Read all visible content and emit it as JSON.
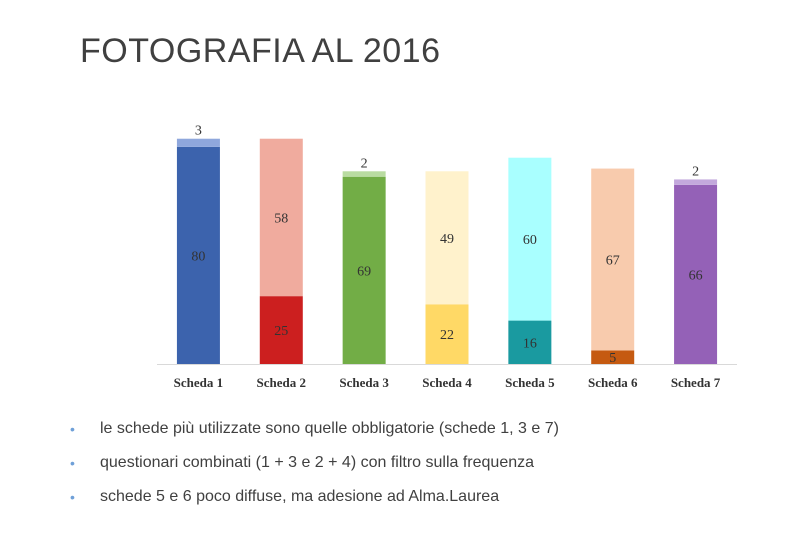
{
  "title": "FOTOGRAFIA AL 2016",
  "bullets": [
    "le schede più utilizzate sono quelle obbligatorie (schede 1, 3 e 7)",
    "questionari combinati (1 + 3 e 2 + 4) con filtro sulla frequenza",
    "schede 5 e 6 poco diffuse, ma adesione ad Alma.Laurea"
  ],
  "chart_data": {
    "type": "bar",
    "stacked": true,
    "categories": [
      "Scheda 1",
      "Scheda 2",
      "Scheda 3",
      "Scheda 4",
      "Scheda 5",
      "Scheda 6",
      "Scheda 7"
    ],
    "segments": [
      [
        {
          "value": 80,
          "color": "#3c63ad"
        },
        {
          "value": 3,
          "color": "#8fa7dc"
        }
      ],
      [
        {
          "value": 25,
          "color": "#cc1f1f"
        },
        {
          "value": 58,
          "color": "#f0ab9e"
        }
      ],
      [
        {
          "value": 69,
          "color": "#72ad46"
        },
        {
          "value": 2,
          "color": "#b9dca1"
        }
      ],
      [
        {
          "value": 22,
          "color": "#ffd966"
        },
        {
          "value": 49,
          "color": "#fff2cc"
        }
      ],
      [
        {
          "value": 16,
          "color": "#1a9aa0"
        },
        {
          "value": 60,
          "color": "#a9ffff"
        }
      ],
      [
        {
          "value": 5,
          "color": "#c55a11"
        },
        {
          "value": 67,
          "color": "#f8cbad"
        }
      ],
      [
        {
          "value": 66,
          "color": "#9461b7"
        },
        {
          "value": 2,
          "color": "#c3a8dc"
        }
      ]
    ],
    "ylim": [
      0,
      84
    ],
    "grid": false,
    "legend": "none"
  }
}
